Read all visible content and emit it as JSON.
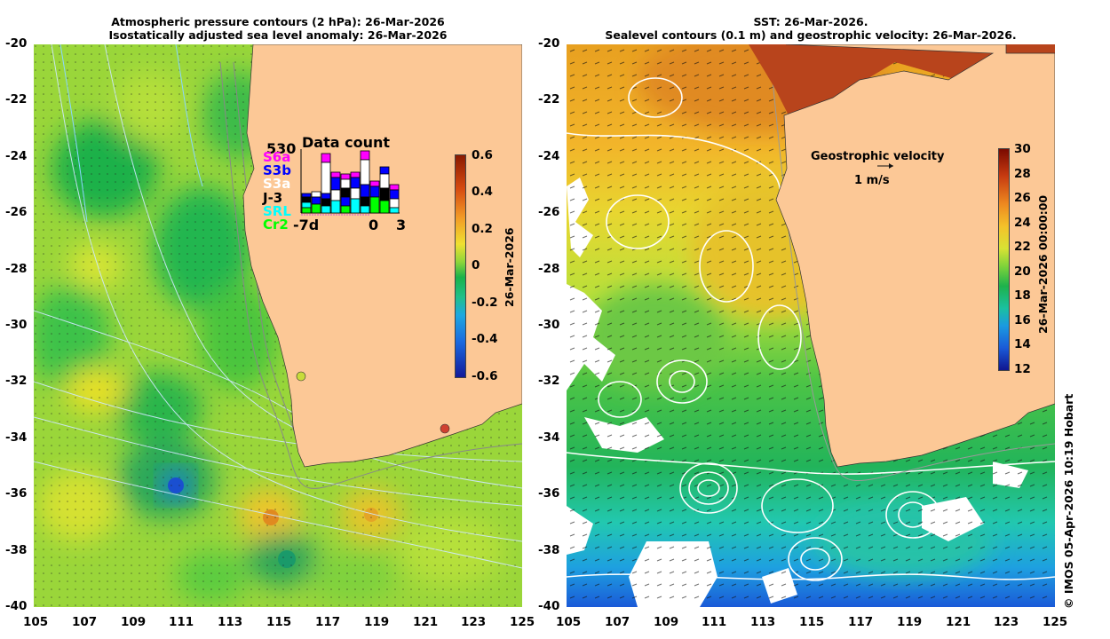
{
  "left_panel": {
    "title_line1": "Atmospheric pressure contours (2 hPa): 26-Mar-2026",
    "title_line2": "Isostatically adjusted sea level anomaly: 26-Mar-2026",
    "y_ticks": [
      "-20",
      "-22",
      "-24",
      "-26",
      "-28",
      "-30",
      "-32",
      "-34",
      "-36",
      "-38",
      "-40"
    ],
    "x_ticks": [
      "105",
      "107",
      "109",
      "111",
      "113",
      "115",
      "117",
      "119",
      "121",
      "123",
      "125"
    ],
    "colorbar_ticks": [
      "0.6",
      "0.4",
      "0.2",
      "0",
      "-0.2",
      "-0.4",
      "-0.6"
    ],
    "colorbar_label": "26-Mar-2026",
    "data_count": {
      "title": "Data count",
      "max": "530",
      "satellites": [
        {
          "name": "S6a",
          "color": "#ff00ff"
        },
        {
          "name": "S3b",
          "color": "#0000ff"
        },
        {
          "name": "S3a",
          "color": "#ffffff"
        },
        {
          "name": "J-3",
          "color": "#000000"
        },
        {
          "name": "SRL",
          "color": "#00ffff"
        },
        {
          "name": "Cr2",
          "color": "#00ff00"
        }
      ],
      "x_labels": [
        "-7d",
        "0",
        "3"
      ]
    }
  },
  "right_panel": {
    "title_line1": "SST: 26-Mar-2026.",
    "title_line2": "Sealevel contours (0.1 m) and geostrophic velocity: 26-Mar-2026.",
    "y_ticks": [
      "-20",
      "-22",
      "-24",
      "-26",
      "-28",
      "-30",
      "-32",
      "-34",
      "-36",
      "-38",
      "-40"
    ],
    "x_ticks": [
      "105",
      "107",
      "109",
      "111",
      "113",
      "115",
      "117",
      "119",
      "121",
      "123",
      "125"
    ],
    "colorbar_ticks": [
      "30",
      "28",
      "26",
      "24",
      "22",
      "20",
      "18",
      "16",
      "14",
      "12"
    ],
    "colorbar_label": "26-Mar-2026 00:00:00",
    "velocity_legend": "Geostrophic velocity",
    "velocity_scale": "1 m/s"
  },
  "credit": "© IMOS 05-Apr-2026 10:19 Hobart"
}
